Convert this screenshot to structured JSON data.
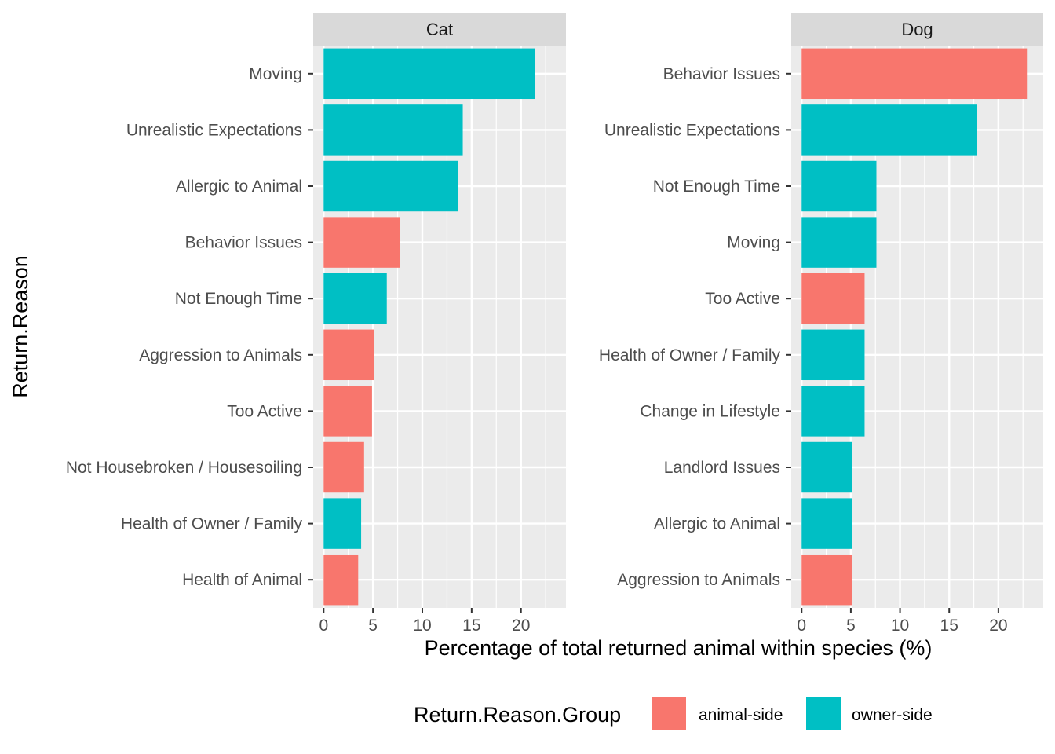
{
  "chart_data": {
    "type": "bar",
    "orientation": "horizontal",
    "xlabel": "Percentage of total returned animal within species (%)",
    "ylabel": "Return.Reason",
    "xlim": [
      0,
      23.5
    ],
    "xticks": [
      0,
      5,
      10,
      15,
      20
    ],
    "grid": true,
    "legend": {
      "title": "Return.Reason.Group",
      "position": "bottom",
      "entries": [
        {
          "label": "animal-side",
          "color": "#F8766D"
        },
        {
          "label": "owner-side",
          "color": "#00BFC4"
        }
      ]
    },
    "panels": [
      {
        "strip": "Cat",
        "categories": [
          "Moving",
          "Unrealistic Expectations",
          "Allergic to Animal",
          "Behavior Issues",
          "Not Enough Time",
          "Aggression to Animals",
          "Too Active",
          "Not Housebroken / Housesoiling",
          "Health of Owner / Family",
          "Health of Animal"
        ],
        "values": [
          21.4,
          14.1,
          13.6,
          7.7,
          6.4,
          5.1,
          4.9,
          4.1,
          3.8,
          3.5
        ],
        "groups": [
          "owner-side",
          "owner-side",
          "owner-side",
          "animal-side",
          "owner-side",
          "animal-side",
          "animal-side",
          "animal-side",
          "owner-side",
          "animal-side"
        ]
      },
      {
        "strip": "Dog",
        "categories": [
          "Behavior Issues",
          "Unrealistic Expectations",
          "Not Enough Time",
          "Moving",
          "Too Active",
          "Health of Owner / Family",
          "Change in Lifestyle",
          "Landlord Issues",
          "Allergic to Animal",
          "Aggression to Animals"
        ],
        "values": [
          22.9,
          17.8,
          7.6,
          7.6,
          6.4,
          6.4,
          6.4,
          5.1,
          5.1,
          5.1
        ],
        "groups": [
          "animal-side",
          "owner-side",
          "owner-side",
          "owner-side",
          "animal-side",
          "owner-side",
          "owner-side",
          "owner-side",
          "owner-side",
          "animal-side"
        ]
      }
    ]
  }
}
